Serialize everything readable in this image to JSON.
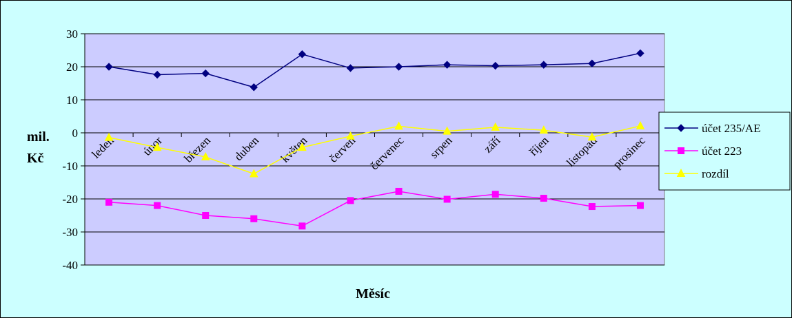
{
  "chart_data": {
    "type": "line",
    "title": "",
    "xlabel": "Měsíc",
    "ylabel_lines": [
      "mil.",
      "Kč"
    ],
    "ylim": [
      -40,
      30
    ],
    "ytick_step": 10,
    "grid": "horizontal",
    "legend_position": "right",
    "colors": {
      "frame_background": "#ccffff",
      "plot_background": "#ccccff"
    },
    "categories": [
      "leden",
      "únor",
      "březen",
      "duben",
      "květen",
      "červen",
      "červenec",
      "srpen",
      "září",
      "říjen",
      "listopad",
      "prosinec"
    ],
    "series": [
      {
        "name": "účet 235/AE",
        "color": "#000080",
        "marker": "diamond",
        "values": [
          20,
          17.6,
          18,
          13.8,
          23.8,
          19.6,
          20,
          20.6,
          20.3,
          20.6,
          21,
          24.1
        ]
      },
      {
        "name": "účet 223",
        "color": "#ff00ff",
        "marker": "square",
        "values": [
          -21,
          -22,
          -25,
          -26,
          -28.2,
          -20.5,
          -17.7,
          -20.1,
          -18.6,
          -19.8,
          -22.3,
          -22
        ]
      },
      {
        "name": "rozdíl",
        "color": "#ffff00",
        "marker": "triangle",
        "values": [
          -1.4,
          -4.4,
          -7.3,
          -12.4,
          -4.4,
          -1,
          2,
          0.5,
          1.7,
          0.8,
          -1.3,
          2.1
        ]
      }
    ]
  }
}
